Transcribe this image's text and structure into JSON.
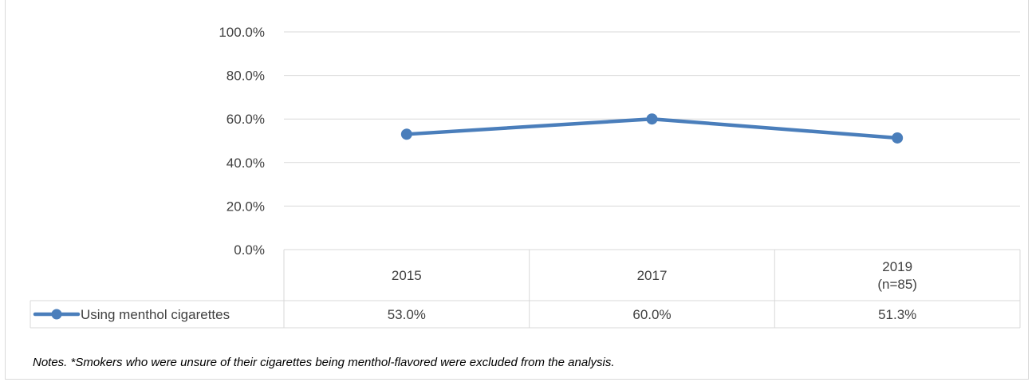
{
  "chart_data": {
    "type": "line",
    "categories": [
      "2015",
      "2017",
      "2019\n(n=85)"
    ],
    "series": [
      {
        "name": "Using menthol cigarettes",
        "values": [
          53.0,
          60.0,
          51.3
        ],
        "labels": [
          "53.0%",
          "60.0%",
          "51.3%"
        ],
        "color": "#4a7ebb"
      }
    ],
    "ylim": [
      0,
      100
    ],
    "yticks": [
      0,
      20,
      40,
      60,
      80,
      100
    ],
    "ytick_labels": [
      "0.0%",
      "20.0%",
      "40.0%",
      "60.0%",
      "80.0%",
      "100.0%"
    ],
    "grid": true,
    "legend": "data-table-left",
    "title": "",
    "xlabel": "",
    "ylabel": ""
  },
  "notes": "Notes. *Smokers who were unsure of their cigarettes being menthol-flavored were excluded from the analysis."
}
